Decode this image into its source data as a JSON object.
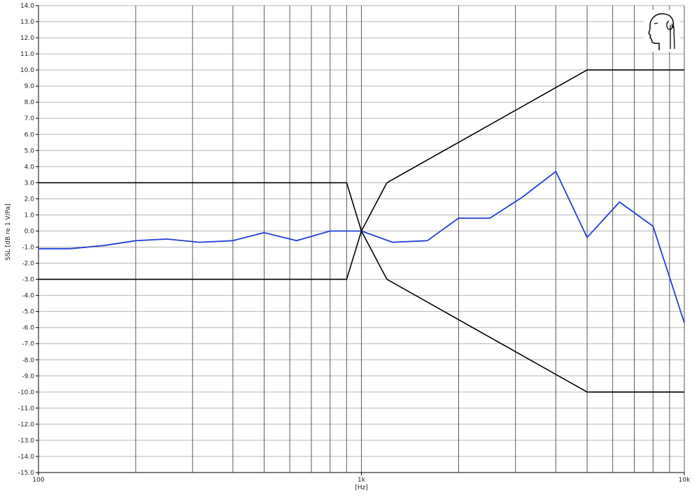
{
  "chart_data": {
    "type": "line",
    "title": "",
    "xlabel": "[Hz]",
    "ylabel": "SSL [dB re 1 V/Pa]",
    "x_scale": "log",
    "xlim": [
      100,
      10000
    ],
    "ylim": [
      -15,
      14
    ],
    "x_ticks": [
      {
        "value": 100,
        "label": "100"
      },
      {
        "value": 1000,
        "label": "1k"
      },
      {
        "value": 10000,
        "label": "10k"
      }
    ],
    "y_ticks": [
      14,
      13,
      12,
      11,
      10,
      9,
      8,
      7,
      6,
      5,
      4,
      3,
      2,
      1,
      0,
      -1,
      -2,
      -3,
      -4,
      -5,
      -6,
      -7,
      -8,
      -9,
      -10,
      -11,
      -12,
      -13,
      -14,
      -15
    ],
    "y_tick_labels": [
      "14.0",
      "13.0",
      "12.0",
      "11.0",
      "10.0",
      "9.0",
      "8.0",
      "7.0",
      "6.0",
      "5.0",
      "4.0",
      "3.0",
      "2.0",
      "1.0",
      "0.0",
      "-1.0",
      "-2.0",
      "-3.0",
      "-4.0",
      "-5.0",
      "-6.0",
      "-7.0",
      "-8.0",
      "-9.0",
      "-10.0",
      "-11.0",
      "-12.0",
      "-13.0",
      "-14.0",
      "-15.0"
    ],
    "grid": true,
    "series": [
      {
        "color": "#1f3fd6",
        "x": [
          100,
          125,
          160,
          200,
          250,
          315,
          400,
          500,
          630,
          800,
          1000,
          1250,
          1600,
          2000,
          2500,
          3150,
          4000,
          5000,
          6300,
          8000,
          10000
        ],
        "y": [
          -1.1,
          -1.1,
          -0.9,
          -0.6,
          -0.5,
          -0.7,
          -0.6,
          -0.1,
          -0.6,
          0.0,
          0.0,
          -0.7,
          -0.6,
          0.8,
          0.8,
          2.1,
          3.7,
          -0.4,
          1.8,
          0.3,
          -5.7
        ]
      },
      {
        "color": "#000000",
        "x": [
          100,
          900,
          1000,
          1200,
          5000,
          10000
        ],
        "y": [
          3,
          3,
          0,
          3,
          10,
          10
        ]
      },
      {
        "color": "#000000",
        "x": [
          100,
          900,
          1000,
          1200,
          5000,
          10000
        ],
        "y": [
          -3,
          -3,
          0,
          -3,
          -10,
          -10
        ]
      }
    ]
  }
}
